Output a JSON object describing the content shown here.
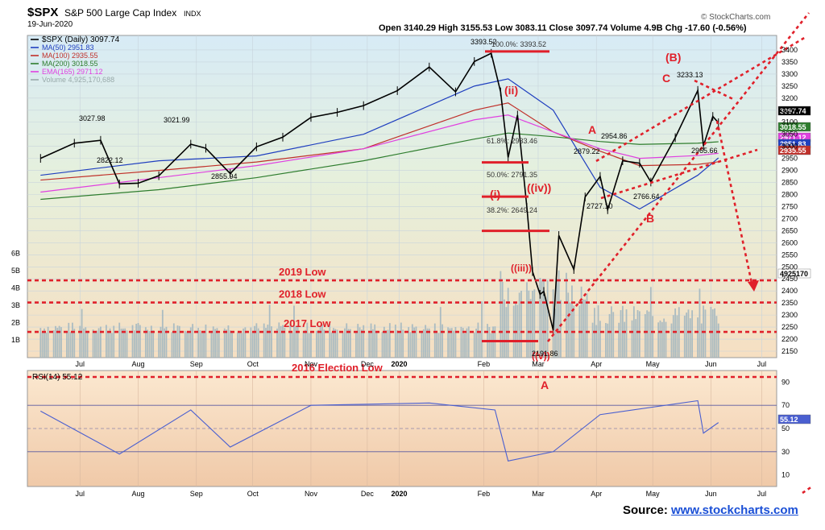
{
  "header": {
    "symbol": "$SPX",
    "name": "S&P 500 Large Cap Index",
    "exchange": "INDX",
    "date": "19-Jun-2020",
    "ohlc": "Open 3140.29  High 3155.53  Low 3083.11  Close 3097.74  Volume 4.9B  Chg -17.60 (-0.56%)",
    "brand": "© StockCharts.com"
  },
  "legend": [
    {
      "label": "$SPX (Daily) 3097.74",
      "color": "#000000"
    },
    {
      "label": "MA(50) 2951.83",
      "color": "#1f3fbf"
    },
    {
      "label": "MA(100) 2935.55",
      "color": "#c0302a"
    },
    {
      "label": "MA(200) 3018.55",
      "color": "#2e7d2e"
    },
    {
      "label": "EMA(165) 2971.12",
      "color": "#e040e0"
    },
    {
      "label": "Volume 4,925,170,688",
      "color": "#9aa"
    }
  ],
  "rsi_label": "RSI(14) 55.12",
  "source": {
    "prefix": "Source: ",
    "link": "www.stockcharts.com"
  },
  "annotations": {
    "low_2019": "2019 Low",
    "low_2018": "2018 Low",
    "low_2017": "2017 Low",
    "low_2016": "2016 Election Low",
    "wave_B_top": "(B)",
    "wave_C": "C",
    "wave_A": "A",
    "wave_B": "B",
    "wave_A_bottom": "A",
    "wave_ii": "(ii)",
    "wave_i": "(i)",
    "wave_iv": "((iv))",
    "wave_iii": "((iii))",
    "wave_v": "((v))"
  },
  "chart_data": {
    "type": "line",
    "title": "$SPX S&P 500 Large Cap Index INDX",
    "price_axis_ticks": [
      2150,
      2200,
      2250,
      2300,
      2350,
      2400,
      2450,
      2500,
      2550,
      2600,
      2650,
      2700,
      2750,
      2800,
      2850,
      2900,
      2950,
      3000,
      3050,
      3100,
      3150,
      3200,
      3250,
      3300,
      3350,
      3400
    ],
    "rsi_axis_ticks": [
      10,
      30,
      50,
      70,
      90
    ],
    "volume_axis_ticks": [
      "1B",
      "2B",
      "3B",
      "4B",
      "5B",
      "6B"
    ],
    "x_labels": [
      "Jul",
      "Aug",
      "Sep",
      "Oct",
      "Nov",
      "Dec",
      "2020",
      "Feb",
      "Mar",
      "Apr",
      "May",
      "Jun",
      "Jul"
    ],
    "price_labels": [
      "3027.98",
      "3021.99",
      "2822.12",
      "2855.94",
      "3393.52",
      "2191.86",
      "2727.10",
      "2766.64",
      "2879.22",
      "2954.86",
      "3233.13",
      "2965.66"
    ],
    "fib_labels": [
      "100.0%: 3393.52",
      "61.8%: 2933.46",
      "50.0%: 2791.35",
      "38.2%: 2649.24"
    ],
    "right_labels": [
      "3097.74",
      "3018.55",
      "2971.12",
      "2951.83",
      "2935.55",
      "4925170",
      "55.12"
    ],
    "series": [
      {
        "name": "$SPX (Daily)",
        "x": [
          "2019-06-24",
          "2019-07-12",
          "2019-07-26",
          "2019-08-05",
          "2019-08-15",
          "2019-08-26",
          "2019-09-12",
          "2019-09-20",
          "2019-10-03",
          "2019-10-17",
          "2019-10-31",
          "2019-11-15",
          "2019-11-29",
          "2019-12-13",
          "2019-12-31",
          "2020-01-17",
          "2020-01-31",
          "2020-02-10",
          "2020-02-19",
          "2020-02-24",
          "2020-02-28",
          "2020-03-04",
          "2020-03-09",
          "2020-03-12",
          "2020-03-16",
          "2020-03-18",
          "2020-03-23",
          "2020-03-26",
          "2020-04-03",
          "2020-04-09",
          "2020-04-17",
          "2020-04-21",
          "2020-04-29",
          "2020-05-08",
          "2020-05-14",
          "2020-05-27",
          "2020-06-08",
          "2020-06-11",
          "2020-06-16",
          "2020-06-19"
        ],
        "values": [
          2950,
          3013,
          3025,
          2844,
          2847,
          2878,
          3009,
          2992,
          2887,
          2998,
          3038,
          3120,
          3141,
          3169,
          3231,
          3329,
          3226,
          3352,
          3386,
          3226,
          2954,
          3130,
          2746,
          2480,
          2386,
          2398,
          2237,
          2630,
          2489,
          2790,
          2875,
          2737,
          2940,
          2930,
          2852,
          3036,
          3232,
          3002,
          3124,
          3098
        ]
      },
      {
        "name": "MA(50)",
        "x": [
          "2019-06-24",
          "2019-08-26",
          "2019-10-17",
          "2019-12-13",
          "2020-02-10",
          "2020-02-28",
          "2020-03-23",
          "2020-04-17",
          "2020-05-08",
          "2020-06-08",
          "2020-06-19"
        ],
        "values": [
          2880,
          2940,
          2960,
          3050,
          3250,
          3280,
          3150,
          2830,
          2740,
          2880,
          2952
        ]
      },
      {
        "name": "MA(100)",
        "x": [
          "2019-06-24",
          "2019-08-26",
          "2019-10-17",
          "2019-12-13",
          "2020-02-10",
          "2020-02-28",
          "2020-03-23",
          "2020-04-17",
          "2020-05-08",
          "2020-06-08",
          "2020-06-19"
        ],
        "values": [
          2860,
          2900,
          2935,
          2990,
          3150,
          3180,
          3060,
          2980,
          2920,
          2925,
          2936
        ]
      },
      {
        "name": "MA(200)",
        "x": [
          "2019-06-24",
          "2019-08-26",
          "2019-10-17",
          "2019-12-13",
          "2020-02-10",
          "2020-02-28",
          "2020-03-23",
          "2020-04-17",
          "2020-05-08",
          "2020-06-08",
          "2020-06-19"
        ],
        "values": [
          2780,
          2820,
          2870,
          2940,
          3030,
          3055,
          3040,
          3020,
          3008,
          3013,
          3019
        ]
      },
      {
        "name": "EMA(165)",
        "x": [
          "2019-06-24",
          "2019-08-26",
          "2019-10-17",
          "2019-12-13",
          "2020-02-10",
          "2020-02-28",
          "2020-03-23",
          "2020-04-17",
          "2020-05-08",
          "2020-06-08",
          "2020-06-19"
        ],
        "values": [
          2810,
          2870,
          2920,
          2990,
          3110,
          3130,
          3060,
          2990,
          2950,
          2962,
          2971
        ]
      }
    ],
    "rsi": {
      "x": [
        "2019-06-24",
        "2019-08-05",
        "2019-09-12",
        "2019-10-03",
        "2019-11-15",
        "2020-01-17",
        "2020-02-21",
        "2020-02-28",
        "2020-03-23",
        "2020-04-17",
        "2020-06-08",
        "2020-06-11",
        "2020-06-19"
      ],
      "values": [
        65,
        28,
        66,
        34,
        70,
        72,
        66,
        22,
        30,
        62,
        74,
        46,
        55.12
      ]
    },
    "reference_lines": {
      "low_2019": 2444,
      "low_2018": 2352,
      "low_2017": 2230,
      "low_2016": 2085
    },
    "ylim": [
      2150,
      3420
    ],
    "grid": true,
    "legend_position": "top-left"
  }
}
